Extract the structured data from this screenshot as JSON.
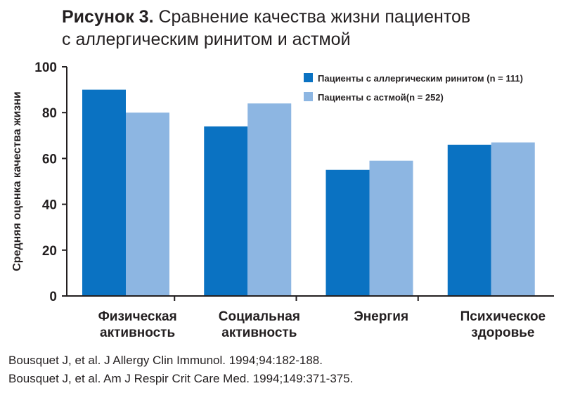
{
  "figure": {
    "label": "Рисунок 3.",
    "title_line1": "Сравнение качества жизни пациентов",
    "title_line2": "с аллергическим ринитом и астмой"
  },
  "chart_data": {
    "type": "bar",
    "ylabel": "Средняя оценка качества жизни",
    "xlabel": "",
    "ylim": [
      0,
      100
    ],
    "yticks": [
      0,
      20,
      40,
      60,
      80,
      100
    ],
    "grid": false,
    "legend_position": "top-right",
    "categories": [
      [
        "Физическая",
        "активность"
      ],
      [
        "Социальная",
        "активность"
      ],
      [
        "Энергия"
      ],
      [
        "Психическое",
        "здоровье"
      ]
    ],
    "series": [
      {
        "name": "Пациенты с аллергическим ринитом (n = 111)",
        "color": "#0a72c2",
        "values": [
          90,
          74,
          55,
          66
        ]
      },
      {
        "name": "Пациенты с астмой(n = 252)",
        "color": "#8db6e2",
        "values": [
          80,
          84,
          59,
          67
        ]
      }
    ]
  },
  "references": [
    "Bousquet J, et al. J Allergy Clin Immunol. 1994;94:182-188.",
    "Bousquet J, et al. Am J Respir Crit Care Med. 1994;149:371-375."
  ]
}
